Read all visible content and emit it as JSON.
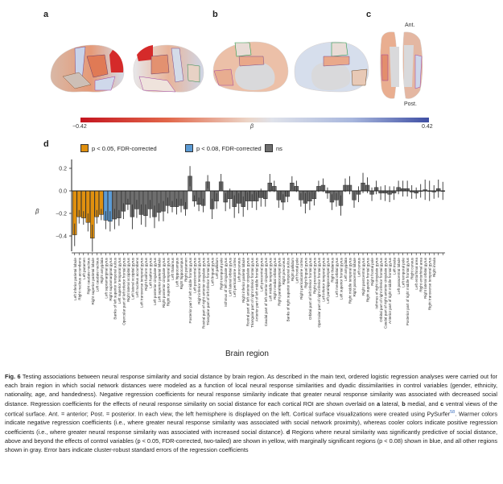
{
  "panels": {
    "a": "a",
    "b": "b",
    "c": "c",
    "d": "d",
    "c_ant": "Ant.",
    "c_post": "Post."
  },
  "colorbar": {
    "min_label": "−0.42",
    "max_label": "0.42",
    "center_label": "β",
    "colors": {
      "neg": "#c4141f",
      "mid": "#e8ded8",
      "pos": "#3f4fa4"
    }
  },
  "legend": [
    {
      "label": "p < 0.05, FDR-corrected",
      "color": "#e0900f"
    },
    {
      "label": "p < 0.08, FDR-corrected",
      "color": "#5b9bd5"
    },
    {
      "label": "ns",
      "color": "#6e6e6e"
    }
  ],
  "chart_data": {
    "type": "bar",
    "title": "",
    "xlabel": "Brain region",
    "ylabel": "β",
    "ylim": [
      -0.55,
      0.28
    ],
    "yticks": [
      0.2,
      0.0,
      -0.2,
      -0.4
    ],
    "ytick_labels": [
      "0.2",
      "0.0",
      "−0.2",
      "−0.4"
    ],
    "grid": false,
    "legend_position": "top",
    "categories": [
      "Left inferior parietal lobule",
      "Right nucleus accumbens",
      "Left putamen",
      "Right caudate nucleus",
      "Right superior parietal lobule",
      "Left caudate nucleus",
      "Right amygdala",
      "Left supramarginal gyrus",
      "Right supramarginal gyrus",
      "Banks of left superior temporal sulcus",
      "Left superior temporal gyrus",
      "Opercular part of left inferior frontal gyrus",
      "Right lateral occipital gyrus",
      "Left lateral occipital gyrus",
      "Left nucleus accumbens",
      "Left transverse temporal gyrus",
      "Right fusiform gyrus",
      "Left fusiform gyrus",
      "Left posterior cingulate gyrus",
      "Left superior parietal lobule",
      "Right posterior cingulate gyrus",
      "Right superior temporal gyrus",
      "Left thalamus",
      "Left hippocampus",
      "Right hippocampus",
      "Right putamen",
      "Posterior part of left middle frontal gyrus",
      "Left postcentral gyrus",
      "Right inferior temporal gyrus",
      "Rostral part of right anterior cingulate gyrus",
      "Triangular part of left inferior frontal gyrus",
      "Left lingual gyrus",
      "Left pallidum",
      "Right temporal pole",
      "Isthmus of left cingulate gyrus",
      "Left lateral orbital gyrus",
      "Left pericalcarine cortex",
      "Left precuneus",
      "Right inferior parietal lobule",
      "Rostral part of left anterior cingulate gyrus",
      "Triangular part of right inferior frontal gyrus",
      "Anterior part of left middle frontal gyrus",
      "Left precentral gyrus",
      "Caudal part of left anterior cingulate gyrus",
      "Left middle temporal gyrus",
      "Right medial orbital gyrus",
      "Right parahippocampal gyrus",
      "Right precuneus",
      "Banks of right superior temporal sulcus",
      "Right pallidum",
      "Left frontal pole",
      "Right pericalcarine cortex",
      "Right lingual gyrus",
      "Orbital part of left inferior frontal gyrus",
      "Right precentral gyrus",
      "Opercular part of right inferior frontal gyrus",
      "Left inferior temporal gyrus",
      "Left parahippocampal gyrus",
      "Right thalamus",
      "Left medial orbital gyrus",
      "Left superior frontal gyrus",
      "Left amygdala",
      "Right middle temporal gyrus",
      "Right paracentral lobule",
      "Left cuneus",
      "Right postcentral gyrus",
      "Right superior frontal gyrus",
      "Right frontal pole",
      "Isthmus of right cingulate gyrus",
      "Orbital part of right inferior frontal gyrus",
      "Caudal part of right anterior cingulate gyrus",
      "Anterior part of right middle frontal gyrus",
      "Left insula",
      "Left paracentral lobule",
      "Left temporal pole",
      "Posterior part of right middle frontal gyrus",
      "Right cuneus",
      "Left entorhinal area",
      "Right entorhinal area",
      "Right lateral orbital gyrus",
      "Right transverse temporal gyrus",
      "Right insula"
    ],
    "values": [
      -0.39,
      -0.23,
      -0.24,
      -0.28,
      -0.42,
      -0.23,
      -0.21,
      -0.26,
      -0.27,
      -0.25,
      -0.24,
      -0.18,
      -0.12,
      -0.23,
      -0.16,
      -0.21,
      -0.22,
      -0.16,
      -0.23,
      -0.19,
      -0.18,
      -0.13,
      -0.14,
      -0.14,
      -0.13,
      -0.16,
      0.13,
      -0.09,
      -0.12,
      -0.13,
      0.08,
      -0.16,
      -0.09,
      0.08,
      -0.1,
      -0.07,
      -0.14,
      -0.11,
      -0.14,
      -0.09,
      -0.09,
      -0.09,
      -0.06,
      -0.07,
      0.07,
      0.04,
      -0.08,
      -0.1,
      -0.05,
      0.07,
      0.04,
      -0.08,
      -0.11,
      -0.09,
      -0.07,
      0.04,
      0.05,
      -0.02,
      -0.1,
      -0.08,
      -0.13,
      0.05,
      0.05,
      -0.08,
      -0.03,
      0.07,
      0.05,
      -0.03,
      0.03,
      -0.02,
      -0.02,
      -0.03,
      -0.02,
      0.03,
      0.02,
      0.02,
      -0.01,
      -0.02,
      0.0,
      0.01,
      0.0,
      -0.01,
      0.02,
      0.0
    ],
    "errors": [
      0.1,
      0.06,
      0.06,
      0.08,
      0.12,
      0.06,
      0.05,
      0.08,
      0.09,
      0.09,
      0.07,
      0.07,
      0.05,
      0.11,
      0.08,
      0.09,
      0.1,
      0.08,
      0.1,
      0.08,
      0.09,
      0.07,
      0.05,
      0.07,
      0.06,
      0.06,
      0.09,
      0.05,
      0.06,
      0.06,
      0.06,
      0.09,
      0.07,
      0.07,
      0.08,
      0.09,
      0.1,
      0.09,
      0.09,
      0.08,
      0.06,
      0.08,
      0.08,
      0.07,
      0.08,
      0.05,
      0.07,
      0.07,
      0.05,
      0.06,
      0.05,
      0.06,
      0.09,
      0.08,
      0.06,
      0.05,
      0.06,
      0.05,
      0.07,
      0.06,
      0.09,
      0.06,
      0.08,
      0.07,
      0.07,
      0.09,
      0.07,
      0.06,
      0.06,
      0.06,
      0.07,
      0.07,
      0.06,
      0.06,
      0.07,
      0.07,
      0.06,
      0.05,
      0.06,
      0.09,
      0.09,
      0.06,
      0.08,
      0.08
    ],
    "significance": {
      "p05_count": 7,
      "p08_count": 2
    }
  },
  "caption": {
    "fig": "Fig. 6",
    "part1": " Testing associations between neural response similarity and social distance by brain region. As described in the main text, ordered logistic regression analyses were carried out for each brain region in which social network distances were modeled as a function of local neural response similarities and dyadic dissimilarities in control variables (gender, ethnicity, nationality, age, and handedness). Negative regression coefficients for neural response similarity indicate that greater neural response similarity was associated with decreased social distance. Regression coefficients for the effects of neural response similarity on social distance for each cortical ROI are shown overlaid on ",
    "a": "a",
    "part2": " lateral, ",
    "b": "b",
    "part3": " medial, and ",
    "c": "c",
    "part4": " ventral views of the cortical surface. Ant. = anterior; Post. = posterior. In each view, the left hemisphere is displayed on the left. Cortical surface visualizations were created using PySurfer",
    "ref": "58",
    "part5": ". Warmer colors indicate negative regression coefficients (i.e., where greater neural response similarity was associated with social network proximity), whereas cooler colors indicate positive regression coefficients (i.e., where greater neural response similarity was associated with increased social distance). ",
    "d": "d",
    "part6": " Regions where neural similarity was significantly predictive of social distance, above and beyond the effects of control variables (p < 0.05, FDR-corrected, two-tailed) are shown in yellow, with marginally significant regions (p < 0.08) shown in blue, and all other regions shown in gray. Error bars indicate cluster-robust standard errors of the regression coefficients"
  }
}
